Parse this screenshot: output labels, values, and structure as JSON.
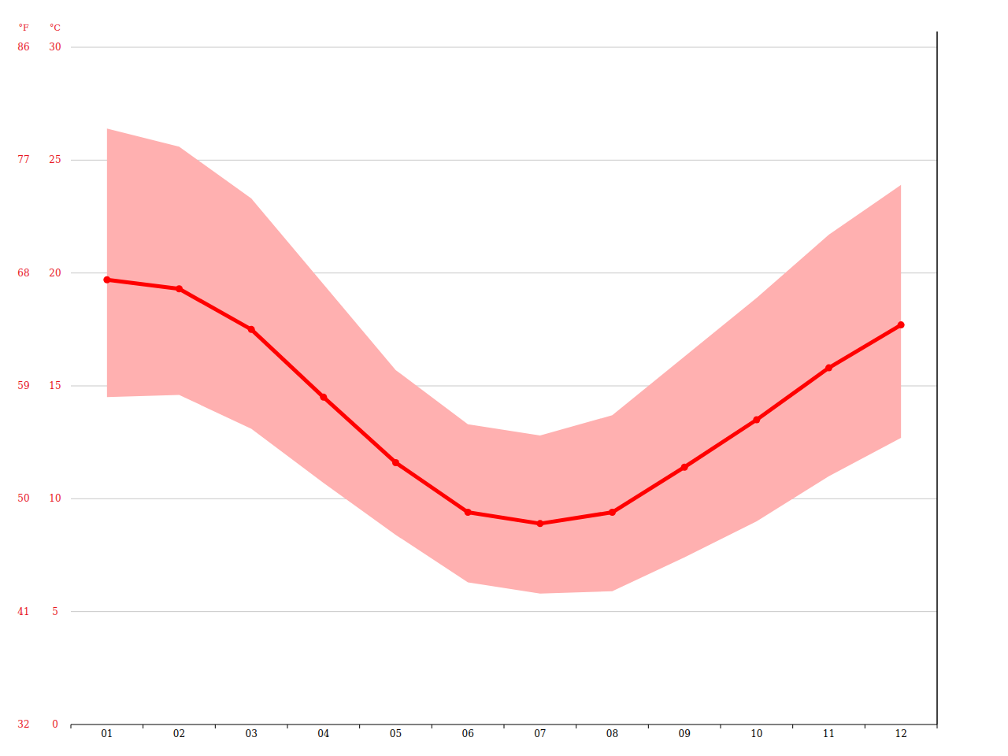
{
  "chart_data": {
    "type": "line",
    "x": [
      1,
      2,
      3,
      4,
      5,
      6,
      7,
      8,
      9,
      10,
      11,
      12
    ],
    "xlim": [
      0.5,
      12.5
    ],
    "xticks": [
      {
        "value": 1,
        "label": "01"
      },
      {
        "value": 2,
        "label": "02"
      },
      {
        "value": 3,
        "label": "03"
      },
      {
        "value": 4,
        "label": "04"
      },
      {
        "value": 5,
        "label": "05"
      },
      {
        "value": 6,
        "label": "06"
      },
      {
        "value": 7,
        "label": "07"
      },
      {
        "value": 8,
        "label": "08"
      },
      {
        "value": 9,
        "label": "09"
      },
      {
        "value": 10,
        "label": "10"
      },
      {
        "value": 11,
        "label": "11"
      },
      {
        "value": 12,
        "label": "12"
      }
    ],
    "y_label": "°C",
    "ylim": [
      0,
      30
    ],
    "yticks": [
      0,
      5,
      10,
      15,
      20,
      25,
      30
    ],
    "y2_label": "°F",
    "y2lim": [
      32,
      86
    ],
    "y2ticks": [
      32,
      41,
      50,
      59,
      68,
      77,
      86
    ],
    "grid": true,
    "series": [
      {
        "type": "band",
        "color": "#ffb0b0",
        "high": [
          26.4,
          25.6,
          23.3,
          19.5,
          15.7,
          13.3,
          12.8,
          13.7,
          16.3,
          18.9,
          21.7,
          23.9
        ],
        "low": [
          14.5,
          14.6,
          13.1,
          10.7,
          8.4,
          6.3,
          5.8,
          5.9,
          7.4,
          9.0,
          11.0,
          12.7
        ]
      },
      {
        "type": "line",
        "color": "#ff0000",
        "marker": "circle",
        "values": [
          19.7,
          19.3,
          17.5,
          14.5,
          11.6,
          9.4,
          8.9,
          9.4,
          11.4,
          13.5,
          15.8,
          17.7
        ]
      }
    ]
  }
}
